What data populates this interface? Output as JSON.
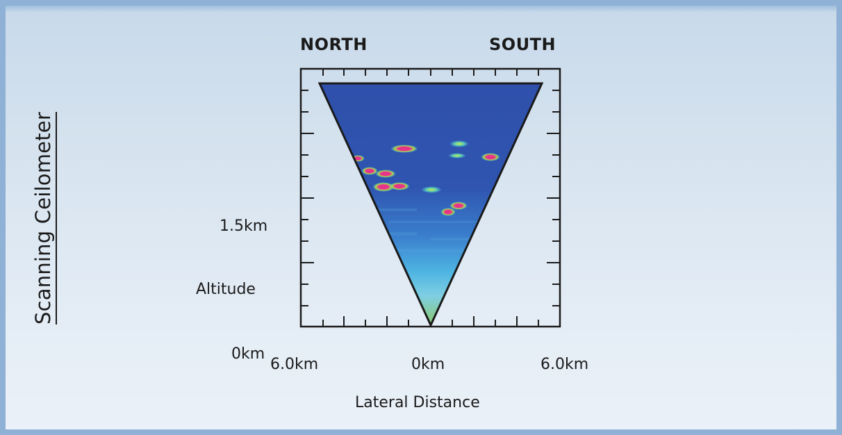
{
  "title": "Scanning Ceilometer",
  "directions": {
    "left": "NORTH",
    "right": "SOUTH"
  },
  "y_axis": {
    "label": "Altitude",
    "ticks": [
      "1.5km",
      "0km"
    ]
  },
  "x_axis": {
    "label": "Lateral Distance",
    "ticks": [
      "6.0km",
      "0km",
      "6.0km"
    ]
  },
  "colors": {
    "upper_air": "#2f4faa",
    "mid_air": "#3e9bd8",
    "lower_air": "#7fcfe3",
    "surface": "#6fbf4a",
    "cloud_core": "#e8338a",
    "cloud_edge": "#a8e04a",
    "frame": "#1a1a1a"
  }
}
